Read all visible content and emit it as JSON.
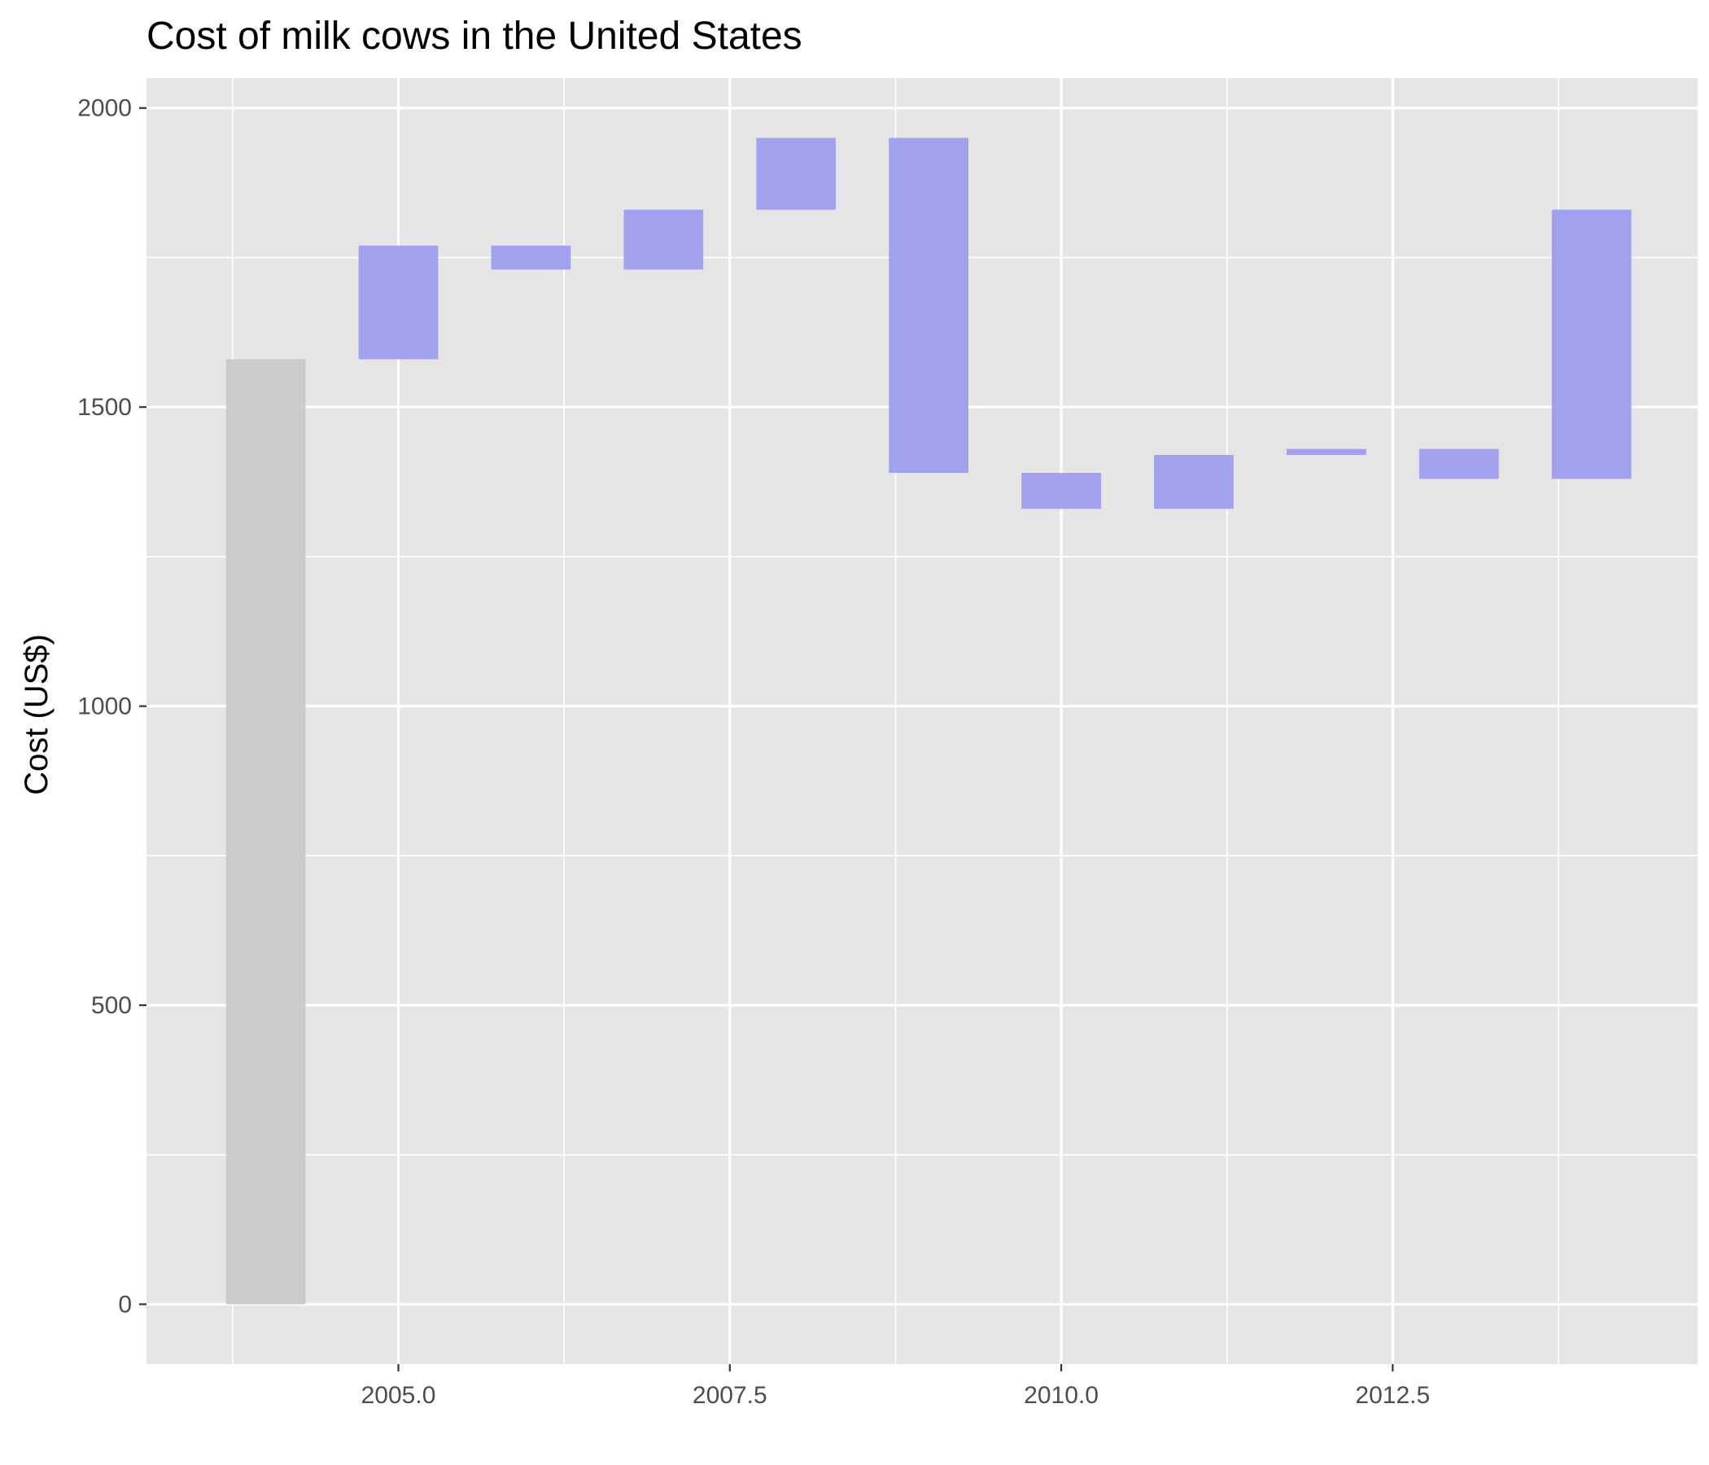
{
  "chart_data": {
    "type": "waterfall",
    "title": "Cost of milk cows in the United States",
    "xlabel": "",
    "ylabel": "Cost (US$)",
    "xlim": [
      2003.1,
      2014.8
    ],
    "ylim": [
      -100,
      2050
    ],
    "x_ticks": [
      {
        "value": 2005.0,
        "label": "2005.0"
      },
      {
        "value": 2007.5,
        "label": "2007.5"
      },
      {
        "value": 2010.0,
        "label": "2010.0"
      },
      {
        "value": 2012.5,
        "label": "2012.5"
      }
    ],
    "x_minor_ticks": [
      2003.75,
      2006.25,
      2008.75,
      2011.25,
      2013.75
    ],
    "y_ticks": [
      {
        "value": 0,
        "label": "0"
      },
      {
        "value": 500,
        "label": "500"
      },
      {
        "value": 1000,
        "label": "1000"
      },
      {
        "value": 1500,
        "label": "1500"
      },
      {
        "value": 2000,
        "label": "2000"
      }
    ],
    "y_minor_ticks": [
      250,
      750,
      1250,
      1750
    ],
    "grid": true,
    "bar_width": 0.6,
    "bars": [
      {
        "x": 2004,
        "start": 0,
        "end": 1580,
        "kind": "base"
      },
      {
        "x": 2005,
        "start": 1580,
        "end": 1770,
        "kind": "change"
      },
      {
        "x": 2006,
        "start": 1770,
        "end": 1730,
        "kind": "change"
      },
      {
        "x": 2007,
        "start": 1730,
        "end": 1830,
        "kind": "change"
      },
      {
        "x": 2008,
        "start": 1830,
        "end": 1950,
        "kind": "change"
      },
      {
        "x": 2009,
        "start": 1950,
        "end": 1390,
        "kind": "change"
      },
      {
        "x": 2010,
        "start": 1390,
        "end": 1330,
        "kind": "change"
      },
      {
        "x": 2011,
        "start": 1330,
        "end": 1420,
        "kind": "change"
      },
      {
        "x": 2012,
        "start": 1420,
        "end": 1430,
        "kind": "change"
      },
      {
        "x": 2013,
        "start": 1430,
        "end": 1380,
        "kind": "change"
      },
      {
        "x": 2014,
        "start": 1380,
        "end": 1830,
        "kind": "change"
      }
    ],
    "colors": {
      "panel_background": "#e5e5e5",
      "grid": "#ffffff",
      "base_bar": "#cbcbcb",
      "change_bar": "#a1a1ee",
      "tick_mark": "#333333"
    }
  }
}
